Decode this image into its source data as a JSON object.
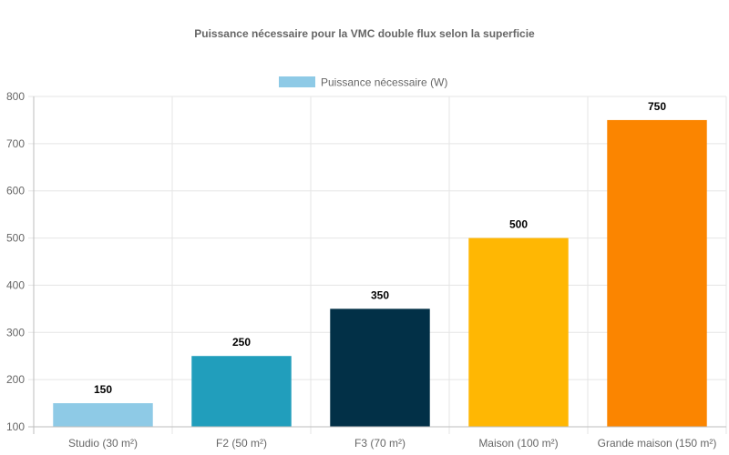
{
  "chart_data": {
    "type": "bar",
    "title": "Puissance nécessaire pour la VMC double flux selon la superficie",
    "xlabel": "",
    "ylabel": "",
    "categories": [
      "Studio (30 m²)",
      "F2 (50 m²)",
      "F3 (70 m²)",
      "Maison (100 m²)",
      "Grande maison (150 m²)"
    ],
    "series": [
      {
        "name": "Puissance nécessaire (W)",
        "values": [
          150,
          250,
          350,
          500,
          750
        ],
        "colors": [
          "#8ecae6",
          "#219ebc",
          "#023047",
          "#ffb703",
          "#fb8500"
        ]
      }
    ],
    "ylim": [
      100,
      800
    ],
    "yticks": [
      100,
      200,
      300,
      400,
      500,
      600,
      700,
      800
    ],
    "grid": true,
    "legend_position": "top-center",
    "legend_color": "#8ecae6",
    "data_labels": [
      "150",
      "250",
      "350",
      "500",
      "750"
    ]
  }
}
